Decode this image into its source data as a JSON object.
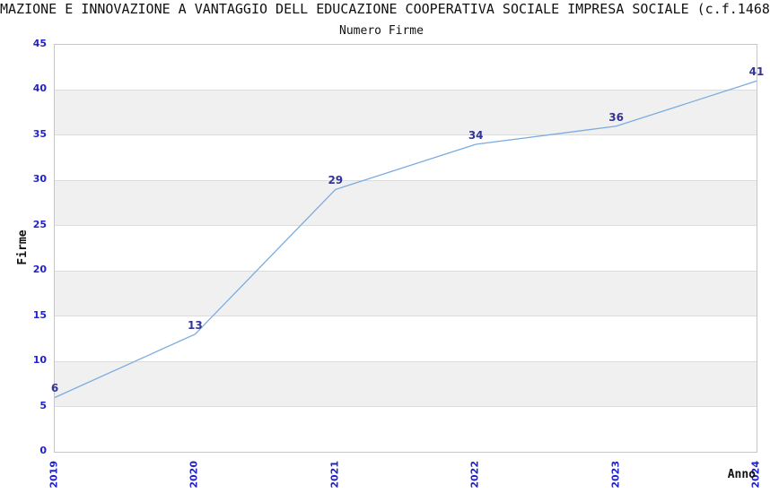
{
  "title": "MAZIONE E INNOVAZIONE A VANTAGGIO DELL EDUCAZIONE COOPERATIVA SOCIALE IMPRESA SOCIALE (c.f.1468",
  "subtitle": "Numero Firme",
  "chart_data": {
    "type": "line",
    "x": [
      "2019",
      "2020",
      "2021",
      "2022",
      "2023",
      "2024"
    ],
    "values": [
      6,
      13,
      29,
      34,
      36,
      41
    ],
    "title": "Numero Firme",
    "xlabel": "Anno",
    "ylabel": "Firme",
    "ylim": [
      0,
      45
    ],
    "ytick_step": 5,
    "grid": "horizontal-bands",
    "legend": "none",
    "point_labels": [
      6,
      13,
      29,
      34,
      36,
      41
    ],
    "colors": {
      "line": "#7AACE0",
      "tick_label": "#2222CC",
      "point_label": "#333399",
      "band": "#F0F0F0",
      "gridline": "#DCDCDC",
      "plot_border": "#C6C6C6",
      "text": "#111111"
    }
  }
}
